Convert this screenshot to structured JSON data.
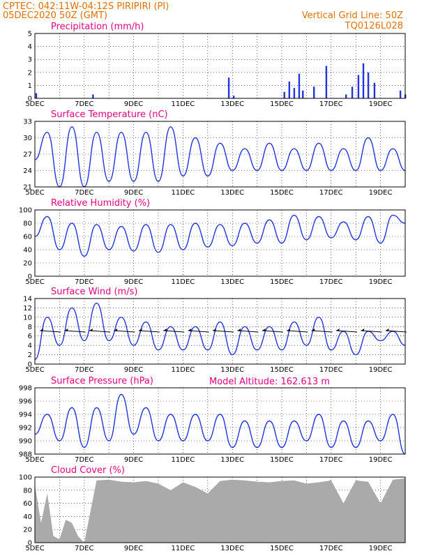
{
  "header": {
    "line1": "CPTEC:   042:11W-04:12S   PIRIPIRI (PI)",
    "line2": "05DEC2020 50Z (GMT)",
    "grid_note": "Vertical Grid Line: 50Z",
    "code": "TQ0126L028",
    "altitude": "Model Altitude: 162.613 m"
  },
  "colors": {
    "header": "#e07000",
    "title": "#e6007e",
    "line": "#2233dd",
    "cloud": "#aaaaaa"
  },
  "x_dates": [
    "5DEC",
    "7DEC",
    "9DEC",
    "11DEC",
    "13DEC",
    "15DEC",
    "17DEC",
    "19DEC"
  ],
  "chart_data": [
    {
      "type": "bar",
      "title": "Precipitation (mm/h)",
      "ylim": [
        0,
        5
      ],
      "yticks": [
        0,
        1,
        2,
        3,
        4,
        5
      ],
      "x": [
        0.05,
        2.35,
        7.85,
        8.05,
        10.1,
        10.3,
        10.5,
        10.7,
        10.85,
        11.3,
        11.8,
        12.6,
        12.85,
        13.1,
        13.3,
        13.5,
        13.75,
        14.8,
        15.0
      ],
      "values": [
        0.4,
        0.3,
        1.6,
        0.2,
        0.5,
        1.3,
        0.8,
        1.9,
        0.6,
        0.9,
        2.5,
        0.3,
        0.9,
        1.8,
        2.7,
        2.0,
        1.2,
        0.6,
        0.3
      ]
    },
    {
      "type": "line",
      "title": "Surface Temperature (nC)",
      "ylim": [
        21,
        33
      ],
      "yticks": [
        21,
        24,
        27,
        30,
        33
      ],
      "x": [
        0,
        0.5,
        1,
        1.5,
        2,
        2.5,
        3,
        3.5,
        4,
        4.5,
        5,
        5.5,
        6,
        6.5,
        7,
        7.5,
        8,
        8.5,
        9,
        9.5,
        10,
        10.5,
        11,
        11.5,
        12,
        12.5,
        13,
        13.5,
        14,
        14.5,
        15
      ],
      "values": [
        26,
        31,
        21,
        32,
        21,
        31,
        22,
        31,
        22,
        31,
        22,
        32,
        23,
        30,
        23,
        29,
        24,
        28,
        24,
        29,
        24,
        28,
        24,
        29,
        24,
        28,
        24,
        30,
        24,
        28,
        24
      ]
    },
    {
      "type": "line",
      "title": "Relative Humidity (%)",
      "ylim": [
        0,
        100
      ],
      "yticks": [
        0,
        20,
        40,
        60,
        80,
        100
      ],
      "x": [
        0,
        0.5,
        1,
        1.5,
        2,
        2.5,
        3,
        3.5,
        4,
        4.5,
        5,
        5.5,
        6,
        6.5,
        7,
        7.5,
        8,
        8.5,
        9,
        9.5,
        10,
        10.5,
        11,
        11.5,
        12,
        12.5,
        13,
        13.5,
        14,
        14.5,
        15
      ],
      "values": [
        60,
        90,
        40,
        80,
        30,
        78,
        40,
        75,
        38,
        78,
        36,
        78,
        40,
        80,
        44,
        78,
        46,
        80,
        50,
        85,
        50,
        92,
        55,
        90,
        58,
        82,
        55,
        90,
        50,
        92,
        80
      ]
    },
    {
      "type": "line",
      "title": "Surface Wind (m/s)",
      "ylim": [
        0,
        14
      ],
      "yticks": [
        0,
        2,
        4,
        6,
        8,
        10,
        12,
        14
      ],
      "x": [
        0,
        0.5,
        1,
        1.5,
        2,
        2.5,
        3,
        3.5,
        4,
        4.5,
        5,
        5.5,
        6,
        6.5,
        7,
        7.5,
        8,
        8.5,
        9,
        9.5,
        10,
        10.5,
        11,
        11.5,
        12,
        12.5,
        13,
        13.5,
        14,
        14.5,
        15
      ],
      "values": [
        1,
        10,
        4,
        12,
        5,
        13,
        5,
        10,
        4,
        9,
        3,
        8,
        3,
        8,
        3,
        9,
        2,
        8,
        3,
        8,
        3,
        9,
        4,
        10,
        3,
        7,
        2,
        7,
        5,
        7,
        4
      ]
    },
    {
      "type": "line",
      "title": "Surface Pressure (hPa)",
      "ylim": [
        988,
        998
      ],
      "yticks": [
        988,
        990,
        992,
        994,
        996,
        998
      ],
      "x": [
        0,
        0.5,
        1,
        1.5,
        2,
        2.5,
        3,
        3.5,
        4,
        4.5,
        5,
        5.5,
        6,
        6.5,
        7,
        7.5,
        8,
        8.5,
        9,
        9.5,
        10,
        10.5,
        11,
        11.5,
        12,
        12.5,
        13,
        13.5,
        14,
        14.5,
        15
      ],
      "values": [
        991,
        994,
        990,
        995,
        989,
        995,
        990,
        997,
        991,
        995,
        990,
        994,
        990,
        994,
        990,
        994,
        989,
        993,
        989,
        993,
        989,
        993,
        990,
        994,
        989,
        993,
        989,
        993,
        990,
        994,
        988
      ]
    },
    {
      "type": "area",
      "title": "Cloud Cover (%)",
      "ylim": [
        0,
        100
      ],
      "yticks": [
        0,
        20,
        40,
        60,
        80,
        100
      ],
      "x": [
        0,
        0.25,
        0.5,
        0.75,
        1,
        1.25,
        1.5,
        1.75,
        2,
        2.5,
        3,
        3.5,
        4,
        4.5,
        5,
        5.5,
        6,
        6.5,
        7,
        7.5,
        8,
        8.5,
        9,
        9.5,
        10,
        10.5,
        11,
        11.5,
        12,
        12.5,
        13,
        13.5,
        14,
        14.5,
        15
      ],
      "values": [
        88,
        30,
        75,
        10,
        5,
        35,
        30,
        10,
        0,
        95,
        96,
        93,
        92,
        94,
        90,
        80,
        92,
        85,
        75,
        94,
        96,
        95,
        93,
        92,
        94,
        95,
        90,
        92,
        95,
        60,
        95,
        93,
        60,
        96,
        98
      ]
    }
  ]
}
